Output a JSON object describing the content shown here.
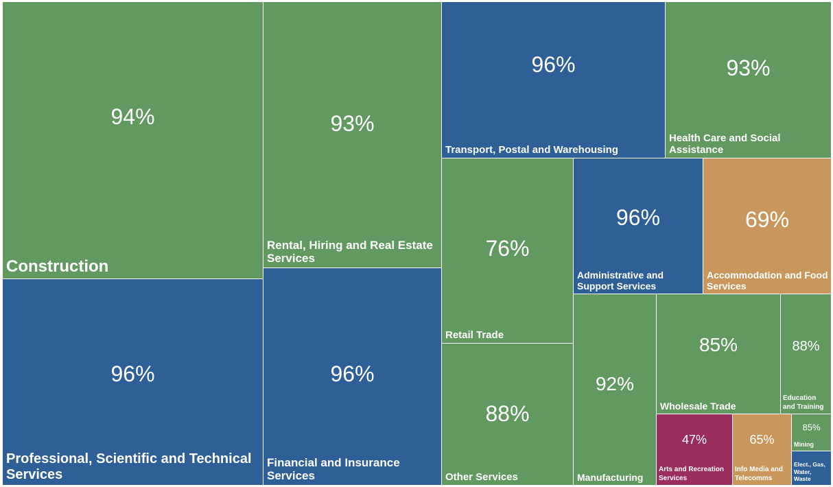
{
  "chart_data": {
    "type": "treemap",
    "categories": [
      "Construction",
      "Professional, Scientific and Technical Services",
      "Rental, Hiring and Real Estate Services",
      "Financial and Insurance Services",
      "Transport, Postal and Warehousing",
      "Health Care and Social Assistance",
      "Retail Trade",
      "Other Services",
      "Administrative and Support Services",
      "Accommodation and Food Services",
      "Manufacturing",
      "Wholesale Trade",
      "Education and Training",
      "Arts and Recreation Services",
      "Info Media and Telecomms",
      "Mining",
      "Elect., Gas, Water, Waste"
    ],
    "values": [
      94,
      96,
      93,
      96,
      96,
      93,
      76,
      88,
      96,
      69,
      92,
      85,
      88,
      47,
      65,
      85,
      null
    ],
    "value_labels": [
      "94%",
      "96%",
      "93%",
      "96%",
      "96%",
      "93%",
      "76%",
      "88%",
      "96%",
      "69%",
      "92%",
      "85%",
      "88%",
      "47%",
      "65%",
      "85%",
      null
    ],
    "colors": [
      "#619960",
      "#2e5f96",
      "#619960",
      "#2e5f96",
      "#2e5f96",
      "#619960",
      "#619960",
      "#619960",
      "#2e5f96",
      "#c9965c",
      "#619960",
      "#619960",
      "#619960",
      "#9b2d5d",
      "#c9965c",
      "#619960",
      "#2e5f96"
    ]
  }
}
